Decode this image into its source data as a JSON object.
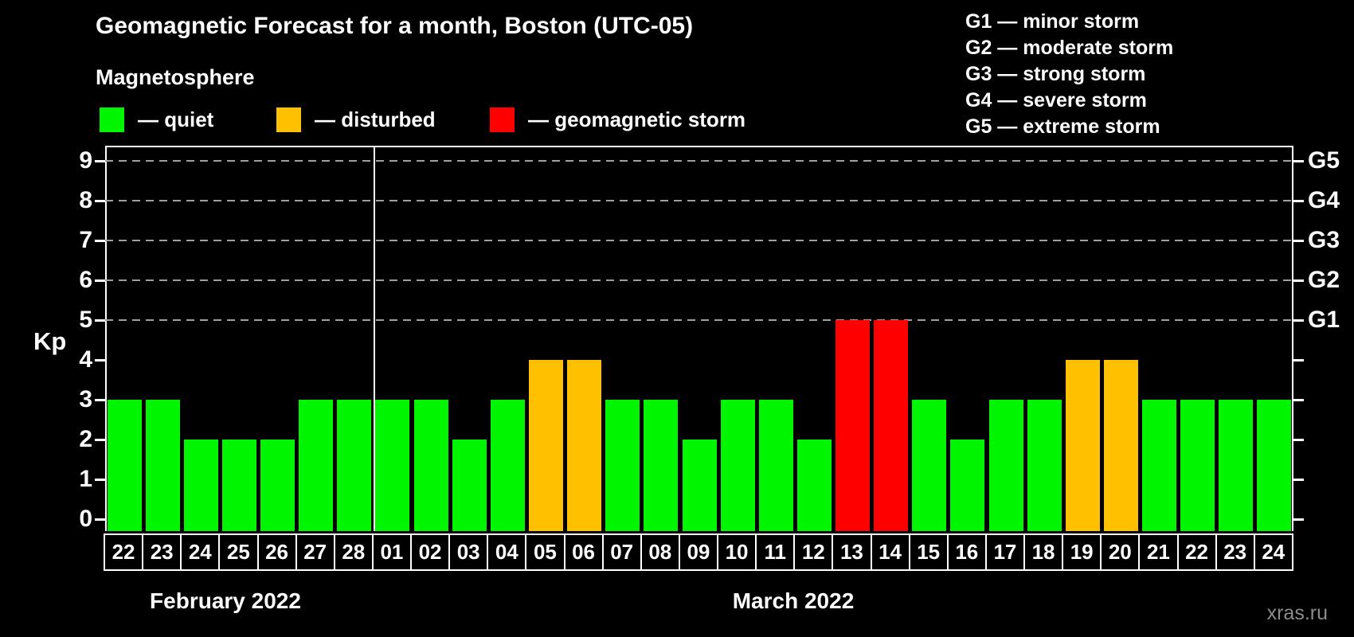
{
  "title": "Geomagnetic Forecast for a month, Boston (UTC-05)",
  "subtitle": "Magnetosphere",
  "watermark": "xras.ru",
  "legend": {
    "quiet": {
      "label": "— quiet",
      "color": "#00f500"
    },
    "disturbed": {
      "label": "— disturbed",
      "color": "#ffc000"
    },
    "storm": {
      "label": "— geomagnetic storm",
      "color": "#ff0000"
    }
  },
  "g_scale_legend": [
    "G1 — minor storm",
    "G2 — moderate storm",
    "G3 — strong storm",
    "G4 — severe storm",
    "G5 — extreme storm"
  ],
  "axes": {
    "y_label": "Kp",
    "y_ticks": [
      0,
      1,
      2,
      3,
      4,
      5,
      6,
      7,
      8,
      9
    ],
    "right_ticks": [
      {
        "kp": 5,
        "label": "G1"
      },
      {
        "kp": 6,
        "label": "G2"
      },
      {
        "kp": 7,
        "label": "G3"
      },
      {
        "kp": 8,
        "label": "G4"
      },
      {
        "kp": 9,
        "label": "G5"
      }
    ],
    "months": [
      {
        "label": "February 2022",
        "days": 7
      },
      {
        "label": "March 2022",
        "days": 24
      }
    ]
  },
  "chart_data": {
    "type": "bar",
    "title": "Geomagnetic Forecast for a month, Boston (UTC-05)",
    "xlabel": "",
    "ylabel": "Kp",
    "ylim": [
      0,
      9
    ],
    "grid": "dashed horizontal lines at Kp 5,6,7,8,9 (G1–G5)",
    "legend_position": "top-left",
    "categories": [
      "22",
      "23",
      "24",
      "25",
      "26",
      "27",
      "28",
      "01",
      "02",
      "03",
      "04",
      "05",
      "06",
      "07",
      "08",
      "09",
      "10",
      "11",
      "12",
      "13",
      "14",
      "15",
      "16",
      "17",
      "18",
      "19",
      "20",
      "21",
      "22",
      "23",
      "24"
    ],
    "values": [
      3,
      3,
      2,
      2,
      2,
      3,
      3,
      3,
      3,
      2,
      3,
      4,
      4,
      3,
      3,
      2,
      3,
      3,
      2,
      5,
      5,
      3,
      2,
      3,
      3,
      4,
      4,
      3,
      3,
      3,
      3
    ],
    "points": [
      {
        "date": "22",
        "month": "February 2022",
        "kp": 3,
        "status": "quiet"
      },
      {
        "date": "23",
        "month": "February 2022",
        "kp": 3,
        "status": "quiet"
      },
      {
        "date": "24",
        "month": "February 2022",
        "kp": 2,
        "status": "quiet"
      },
      {
        "date": "25",
        "month": "February 2022",
        "kp": 2,
        "status": "quiet"
      },
      {
        "date": "26",
        "month": "February 2022",
        "kp": 2,
        "status": "quiet"
      },
      {
        "date": "27",
        "month": "February 2022",
        "kp": 3,
        "status": "quiet"
      },
      {
        "date": "28",
        "month": "February 2022",
        "kp": 3,
        "status": "quiet"
      },
      {
        "date": "01",
        "month": "March 2022",
        "kp": 3,
        "status": "quiet"
      },
      {
        "date": "02",
        "month": "March 2022",
        "kp": 3,
        "status": "quiet"
      },
      {
        "date": "03",
        "month": "March 2022",
        "kp": 2,
        "status": "quiet"
      },
      {
        "date": "04",
        "month": "March 2022",
        "kp": 3,
        "status": "quiet"
      },
      {
        "date": "05",
        "month": "March 2022",
        "kp": 4,
        "status": "disturbed"
      },
      {
        "date": "06",
        "month": "March 2022",
        "kp": 4,
        "status": "disturbed"
      },
      {
        "date": "07",
        "month": "March 2022",
        "kp": 3,
        "status": "quiet"
      },
      {
        "date": "08",
        "month": "March 2022",
        "kp": 3,
        "status": "quiet"
      },
      {
        "date": "09",
        "month": "March 2022",
        "kp": 2,
        "status": "quiet"
      },
      {
        "date": "10",
        "month": "March 2022",
        "kp": 3,
        "status": "quiet"
      },
      {
        "date": "11",
        "month": "March 2022",
        "kp": 3,
        "status": "quiet"
      },
      {
        "date": "12",
        "month": "March 2022",
        "kp": 2,
        "status": "quiet"
      },
      {
        "date": "13",
        "month": "March 2022",
        "kp": 5,
        "status": "storm"
      },
      {
        "date": "14",
        "month": "March 2022",
        "kp": 5,
        "status": "storm"
      },
      {
        "date": "15",
        "month": "March 2022",
        "kp": 3,
        "status": "quiet"
      },
      {
        "date": "16",
        "month": "March 2022",
        "kp": 2,
        "status": "quiet"
      },
      {
        "date": "17",
        "month": "March 2022",
        "kp": 3,
        "status": "quiet"
      },
      {
        "date": "18",
        "month": "March 2022",
        "kp": 3,
        "status": "quiet"
      },
      {
        "date": "19",
        "month": "March 2022",
        "kp": 4,
        "status": "disturbed"
      },
      {
        "date": "20",
        "month": "March 2022",
        "kp": 4,
        "status": "disturbed"
      },
      {
        "date": "21",
        "month": "March 2022",
        "kp": 3,
        "status": "quiet"
      },
      {
        "date": "22",
        "month": "March 2022",
        "kp": 3,
        "status": "quiet"
      },
      {
        "date": "23",
        "month": "March 2022",
        "kp": 3,
        "status": "quiet"
      },
      {
        "date": "24",
        "month": "March 2022",
        "kp": 3,
        "status": "quiet"
      }
    ]
  }
}
